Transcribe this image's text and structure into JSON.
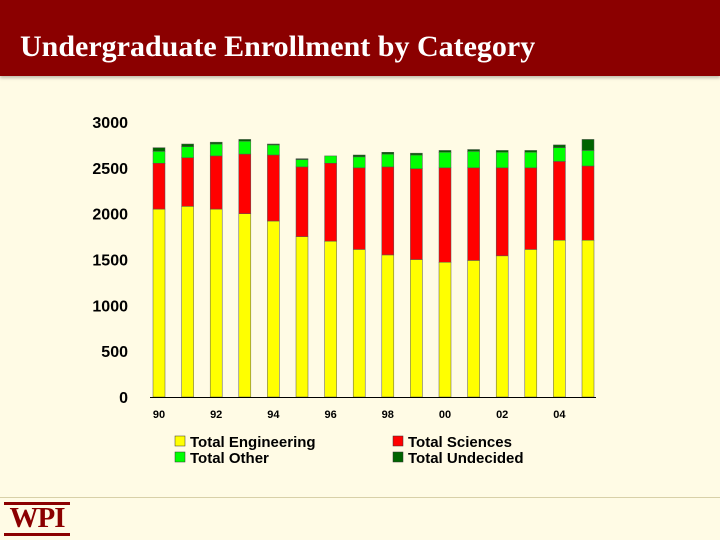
{
  "slide": {
    "title": "Undergraduate Enrollment by Category"
  },
  "logo": {
    "text": "WPI"
  },
  "colors": {
    "title_bar": "#8b0000",
    "background": "#fffbe5",
    "engineering": "#ffff00",
    "sciences": "#ff0000",
    "other": "#00ff00",
    "undecided": "#006400"
  },
  "chart_data": {
    "type": "bar",
    "stacked": true,
    "title": "",
    "xlabel": "",
    "ylabel": "",
    "ylim": [
      0,
      3000
    ],
    "yticks": [
      0,
      500,
      1000,
      1500,
      2000,
      2500,
      3000
    ],
    "categories": [
      "90",
      "91",
      "92",
      "93",
      "94",
      "95",
      "96",
      "97",
      "98",
      "99",
      "00",
      "01",
      "02",
      "03",
      "04",
      "05"
    ],
    "xtick_labels": [
      "90",
      "92",
      "94",
      "96",
      "98",
      "00",
      "02",
      "04"
    ],
    "series": [
      {
        "name": "Total Engineering",
        "color": "#ffff00",
        "values": [
          2050,
          2080,
          2050,
          2000,
          1920,
          1750,
          1700,
          1610,
          1550,
          1500,
          1470,
          1490,
          1540,
          1610,
          1710,
          1710
        ]
      },
      {
        "name": "Total Sciences",
        "color": "#ff0000",
        "values": [
          500,
          530,
          580,
          650,
          720,
          760,
          850,
          890,
          960,
          990,
          1030,
          1010,
          960,
          890,
          860,
          810
        ]
      },
      {
        "name": "Total Other",
        "color": "#00ff00",
        "values": [
          130,
          120,
          130,
          140,
          110,
          80,
          80,
          120,
          140,
          150,
          170,
          180,
          170,
          170,
          150,
          170
        ]
      },
      {
        "name": "Total Undecided",
        "color": "#006400",
        "values": [
          40,
          30,
          20,
          20,
          10,
          10,
          0,
          20,
          20,
          20,
          20,
          20,
          20,
          20,
          30,
          120
        ]
      }
    ],
    "legend": [
      "Total Engineering",
      "Total Sciences",
      "Total Other",
      "Total Undecided"
    ],
    "legend_position": "bottom"
  }
}
